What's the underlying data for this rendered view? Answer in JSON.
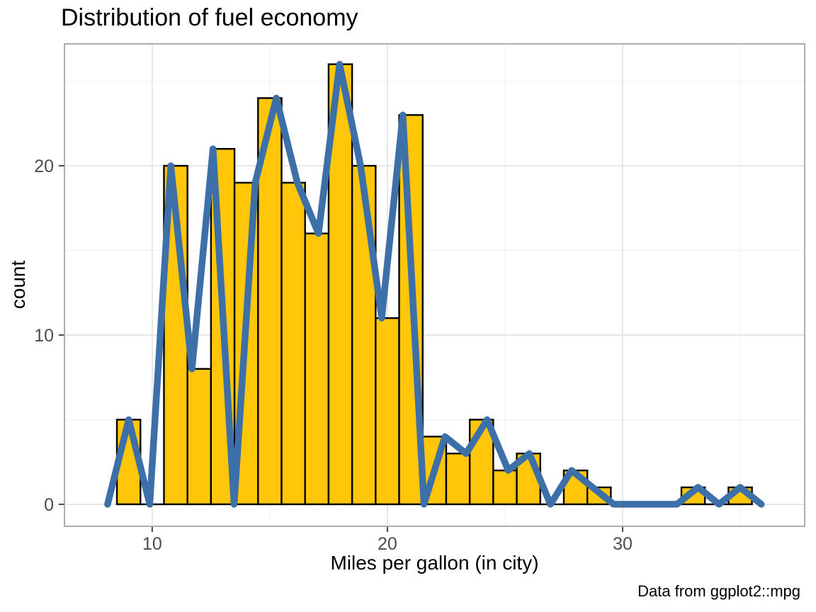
{
  "chart_data": {
    "type": "bar",
    "subtype": "histogram-with-freqpoly-overlay",
    "title": "Distribution of fuel economy",
    "xlabel": "Miles per gallon (in city)",
    "ylabel": "count",
    "caption": "Data from ggplot2::mpg",
    "legend": "none",
    "grid": "on",
    "x_ticks": [
      10,
      20,
      30
    ],
    "x_minor_gridlines": [
      15,
      25,
      35
    ],
    "y_ticks": [
      0,
      10,
      20
    ],
    "y_minor_gridlines": [
      5,
      15,
      25
    ],
    "xlim": [
      6.27,
      37.74
    ],
    "ylim": [
      -1.3,
      27.2
    ],
    "histogram": {
      "binwidth": 1,
      "bin_centers": [
        9,
        10,
        11,
        12,
        13,
        14,
        15,
        16,
        17,
        18,
        19,
        20,
        21,
        22,
        23,
        24,
        25,
        26,
        27,
        28,
        29,
        30,
        31,
        32,
        33,
        34,
        35
      ],
      "counts": [
        5,
        0,
        20,
        8,
        21,
        19,
        24,
        19,
        16,
        26,
        20,
        11,
        23,
        4,
        3,
        5,
        2,
        3,
        0,
        2,
        1,
        0,
        0,
        0,
        1,
        0,
        1
      ]
    },
    "freqpoly": {
      "binwidth": 0.897,
      "x": [
        8.103,
        9.0,
        9.897,
        10.793,
        11.69,
        12.586,
        13.483,
        14.379,
        15.276,
        16.172,
        17.069,
        17.966,
        18.862,
        19.759,
        20.655,
        21.552,
        22.448,
        23.345,
        24.241,
        25.138,
        26.034,
        26.931,
        27.828,
        28.724,
        29.621,
        30.517,
        31.414,
        32.31,
        33.207,
        34.103,
        35.0,
        35.897
      ],
      "y": [
        0,
        5,
        0,
        20,
        8,
        21,
        0,
        19,
        24,
        19,
        16,
        26,
        20,
        11,
        23,
        0,
        4,
        3,
        5,
        2,
        3,
        0,
        2,
        1,
        0,
        0,
        0,
        0,
        1,
        0,
        1,
        0
      ]
    },
    "colors": {
      "bar_fill": "#FFC60A",
      "bar_stroke": "#000000",
      "line": "#3D6FA8",
      "grid_major": "#E3E3E3",
      "grid_minor": "#EFEFEF",
      "panel_border": "#A6A6A6",
      "tick_mark": "#333333",
      "tick_label": "#4D4D4D",
      "text": "#000000",
      "background": "#FFFFFF"
    }
  }
}
